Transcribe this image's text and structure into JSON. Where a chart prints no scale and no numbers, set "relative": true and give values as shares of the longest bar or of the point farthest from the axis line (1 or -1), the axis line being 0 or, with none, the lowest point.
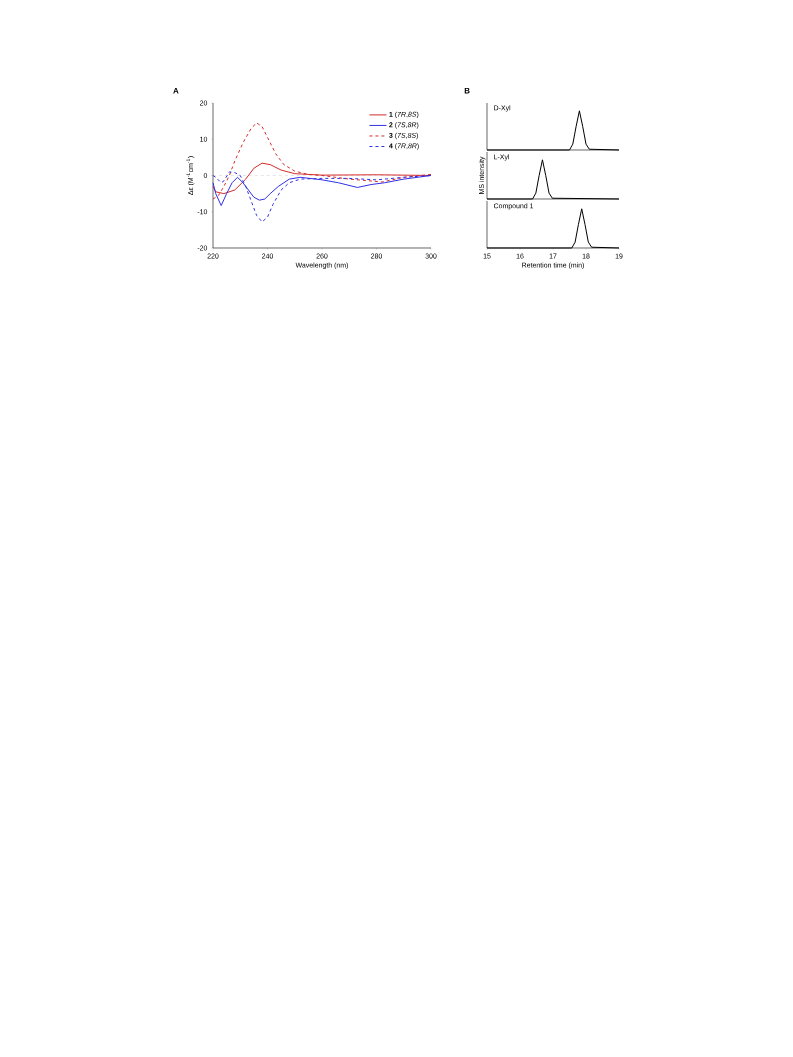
{
  "chart_data": [
    {
      "type": "line",
      "title": "A",
      "xlabel": "Wavelength (nm)",
      "ylabel": "Δε (M$^{-1}$cm$^{-1}$)",
      "xlim": [
        220,
        300
      ],
      "xticks": [
        220,
        240,
        260,
        280,
        300
      ],
      "ylim": [
        -20,
        20
      ],
      "yticks": [
        -20,
        -10,
        0,
        10,
        20
      ],
      "legend": "top right",
      "marker": "none",
      "ref_lines": [
        {
          "axis": "y",
          "value": 0,
          "color": "#cccccc",
          "line_style": "dashed"
        }
      ],
      "series": [
        {
          "name": "**1** (*7R*,*8S*)",
          "color": "#d42a2a",
          "line_style": "solid",
          "x": [
            220,
            221,
            224,
            228,
            232,
            235,
            238,
            241,
            245,
            250,
            260,
            280,
            300
          ],
          "values": [
            -3,
            -4.5,
            -5,
            -4,
            -1,
            2,
            3.4,
            3,
            1.5,
            0.5,
            0.1,
            0.2,
            0
          ]
        },
        {
          "name": "**2** (*7S*,*8R*)",
          "color": "#2f2fe6",
          "line_style": "solid",
          "x": [
            220,
            221,
            223,
            225,
            227,
            229,
            231,
            233,
            235,
            237,
            239,
            241,
            244,
            248,
            252,
            260,
            266,
            273,
            278,
            283,
            290,
            300
          ],
          "values": [
            -2,
            -5,
            -8.3,
            -5,
            -2,
            -0.5,
            -2,
            -4,
            -6,
            -6.8,
            -6.5,
            -5,
            -3,
            -1,
            -0.5,
            -1.2,
            -2,
            -3.3,
            -2.5,
            -2,
            -1,
            0
          ]
        },
        {
          "name": "**3** (*7S*,*8S*)",
          "color": "#d42a2a",
          "line_style": "dashed",
          "x": [
            220,
            222,
            224,
            226,
            228,
            231,
            234,
            236,
            238,
            240,
            243,
            246,
            250,
            255,
            260,
            270,
            278,
            282,
            290,
            300
          ],
          "values": [
            -6.5,
            -5.5,
            -3,
            0,
            4,
            9,
            13,
            14.5,
            13.5,
            10.5,
            6,
            3,
            1.2,
            0.3,
            0,
            -1,
            -1.5,
            -1.8,
            -0.5,
            0.3
          ]
        },
        {
          "name": "**4** (*7R*,*8R*)",
          "color": "#2f2fe6",
          "line_style": "dashed",
          "x": [
            220,
            221,
            223,
            224,
            226,
            228,
            230,
            232,
            234,
            236,
            238,
            240,
            242,
            245,
            248,
            252,
            260,
            270,
            280,
            290,
            300
          ],
          "values": [
            0,
            -0.5,
            -2,
            -1.5,
            1,
            0.8,
            0,
            -3,
            -7,
            -11,
            -12.8,
            -11.5,
            -8,
            -4,
            -2,
            -1,
            -0.8,
            -0.8,
            -1.2,
            -0.5,
            0
          ]
        }
      ]
    },
    {
      "type": "line",
      "title": "B",
      "relative": true,
      "xlim": [
        15,
        19
      ],
      "tick_labels": false,
      "marker": "none",
      "annotations": [
        "D-Xyl"
      ],
      "series": [
        {
          "color": "#000000",
          "x": [
            15,
            17.5,
            17.6,
            17.7,
            17.8,
            17.9,
            18.0,
            18.1,
            19
          ],
          "values": [
            0,
            0,
            0.15,
            0.6,
            1,
            0.6,
            0.15,
            0.02,
            0
          ]
        }
      ]
    },
    {
      "type": "line",
      "relative": true,
      "xlim": [
        15,
        19
      ],
      "tick_labels": false,
      "ylabel": "MS intensity",
      "marker": "none",
      "annotations": [
        "L-Xyl"
      ],
      "series": [
        {
          "color": "#000000",
          "x": [
            15,
            16.38,
            16.48,
            16.58,
            16.68,
            16.78,
            16.88,
            16.98,
            19
          ],
          "values": [
            0,
            0,
            0.15,
            0.6,
            1,
            0.6,
            0.15,
            0.02,
            0
          ]
        }
      ]
    },
    {
      "type": "line",
      "relative": true,
      "xlim": [
        15,
        19
      ],
      "xticks": [
        15,
        16,
        17,
        18,
        19
      ],
      "tick_labels": "x",
      "xlabel": "Retention time (min)",
      "marker": "none",
      "annotations": [
        "Compound 1"
      ],
      "series": [
        {
          "color": "#000000",
          "x": [
            15,
            17.57,
            17.67,
            17.77,
            17.87,
            17.97,
            18.07,
            18.17,
            19
          ],
          "values": [
            0,
            0,
            0.15,
            0.6,
            1,
            0.6,
            0.15,
            0.02,
            0
          ]
        }
      ]
    }
  ]
}
